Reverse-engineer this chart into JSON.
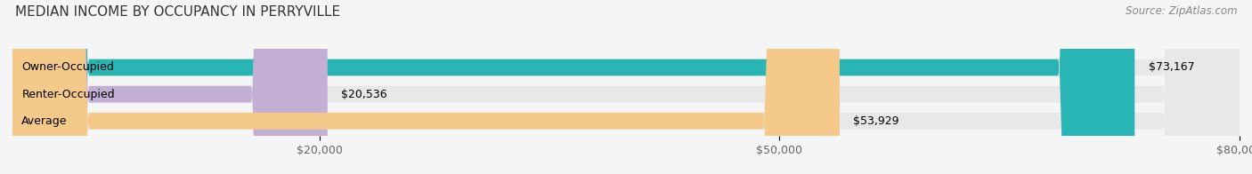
{
  "title": "MEDIAN INCOME BY OCCUPANCY IN PERRYVILLE",
  "source": "Source: ZipAtlas.com",
  "categories": [
    "Owner-Occupied",
    "Renter-Occupied",
    "Average"
  ],
  "values": [
    73167,
    20536,
    53929
  ],
  "bar_colors": [
    "#2ab5b5",
    "#c4afd4",
    "#f5c98a"
  ],
  "bar_labels": [
    "$73,167",
    "$20,536",
    "$53,929"
  ],
  "xlim": [
    0,
    80000
  ],
  "xticks": [
    20000,
    50000,
    80000
  ],
  "xtick_labels": [
    "$20,000",
    "$50,000",
    "$80,000"
  ],
  "grid_lines": [
    0,
    20000,
    50000,
    80000
  ],
  "background_color": "#f5f5f5",
  "bar_background_color": "#e8e8e8",
  "title_fontsize": 11,
  "label_fontsize": 9,
  "source_fontsize": 8.5
}
